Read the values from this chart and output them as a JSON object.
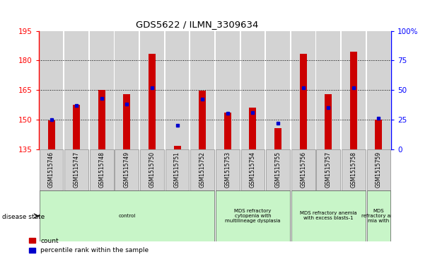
{
  "title": "GDS5622 / ILMN_3309634",
  "samples": [
    "GSM1515746",
    "GSM1515747",
    "GSM1515748",
    "GSM1515749",
    "GSM1515750",
    "GSM1515751",
    "GSM1515752",
    "GSM1515753",
    "GSM1515754",
    "GSM1515755",
    "GSM1515756",
    "GSM1515757",
    "GSM1515758",
    "GSM1515759"
  ],
  "count_values": [
    149.5,
    157.5,
    165.0,
    163.0,
    183.5,
    136.5,
    164.5,
    153.5,
    156.0,
    145.5,
    183.5,
    163.0,
    184.5,
    150.0
  ],
  "percentile_values": [
    25,
    37,
    43,
    38,
    52,
    20,
    42,
    30,
    31,
    22,
    52,
    35,
    52,
    26
  ],
  "y_min": 135,
  "y_max": 195,
  "y_ticks_left": [
    135,
    150,
    165,
    180,
    195
  ],
  "y_ticks_right": [
    0,
    25,
    50,
    75,
    100
  ],
  "bar_color": "#cc0000",
  "dot_color": "#0000cc",
  "col_bg_color": "#d3d3d3",
  "label_bg_color": "#d3d3d3",
  "disease_groups": [
    {
      "label": "control",
      "start": 0,
      "end": 7,
      "color": "#c8f5c8"
    },
    {
      "label": "MDS refractory\ncytopenia with\nmultilineage dysplasia",
      "start": 7,
      "end": 10,
      "color": "#c8f5c8"
    },
    {
      "label": "MDS refractory anemia\nwith excess blasts-1",
      "start": 10,
      "end": 13,
      "color": "#c8f5c8"
    },
    {
      "label": "MDS\nrefractory ane\nmia with",
      "start": 13,
      "end": 14,
      "color": "#c8f5c8"
    }
  ],
  "legend_count_label": "count",
  "legend_pct_label": "percentile rank within the sample",
  "disease_state_label": "disease state"
}
